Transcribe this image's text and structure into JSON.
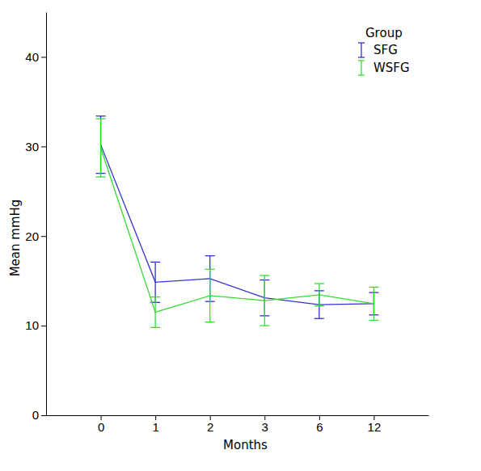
{
  "chart_data": {
    "type": "line",
    "x_label": "Months",
    "y_label": "Mean mmHg",
    "categories": [
      "0",
      "1",
      "2",
      "3",
      "6",
      "12"
    ],
    "series": [
      {
        "name": "SFG",
        "color": "#3333cc",
        "values": [
          30.2,
          14.85,
          15.25,
          13.1,
          12.35,
          12.45
        ],
        "errors": [
          3.2,
          2.25,
          2.55,
          2.0,
          1.55,
          1.25
        ]
      },
      {
        "name": "WSFG",
        "color": "#33dd33",
        "values": [
          29.85,
          11.5,
          13.35,
          12.8,
          13.45,
          12.45
        ],
        "errors": [
          3.25,
          1.7,
          2.95,
          2.8,
          1.25,
          1.85
        ]
      }
    ],
    "ylim": [
      0,
      45
    ],
    "yticks": [
      0,
      10,
      20,
      30,
      40
    ],
    "grid": false,
    "legend": "top-right",
    "legend_title": "Group"
  }
}
